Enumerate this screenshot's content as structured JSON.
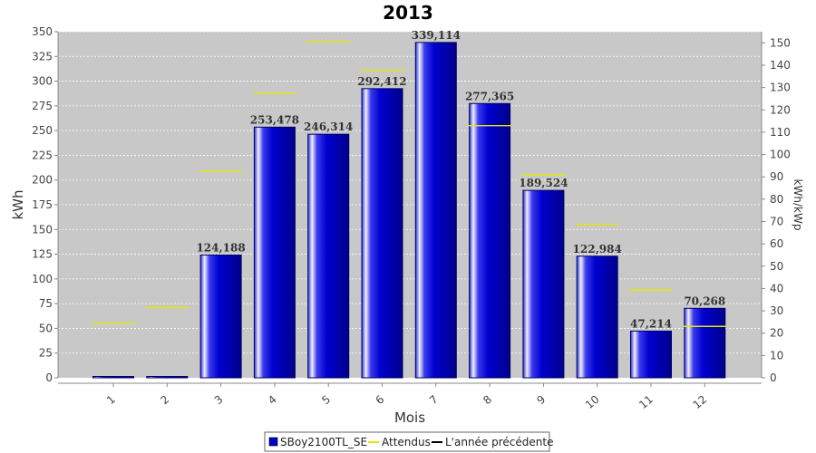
{
  "chart_data": {
    "type": "bar",
    "title": "2013",
    "xlabel": "Mois",
    "ylabel": "kWh",
    "ylabel_right": "kWh/kWp",
    "categories": [
      "1",
      "2",
      "3",
      "4",
      "5",
      "6",
      "7",
      "8",
      "9",
      "10",
      "11",
      "12"
    ],
    "ylim": [
      0,
      350
    ],
    "yticks": [
      0,
      25,
      50,
      75,
      100,
      125,
      150,
      175,
      200,
      225,
      250,
      275,
      300,
      325,
      350
    ],
    "y2lim": [
      0,
      155
    ],
    "y2ticks": [
      0,
      10,
      20,
      30,
      40,
      50,
      60,
      70,
      80,
      90,
      100,
      110,
      120,
      130,
      140,
      150
    ],
    "series": [
      {
        "name": "SBoy2100TL_SE",
        "kind": "bar",
        "values": [
          0,
          0,
          124.188,
          253.478,
          246.314,
          292.412,
          339.114,
          277.365,
          189.524,
          122.984,
          47.214,
          70.268
        ],
        "labels": [
          "",
          "",
          "124,188",
          "253,478",
          "246,314",
          "292,412",
          "339,114",
          "277,365",
          "189,524",
          "122,984",
          "47,214",
          "70,268"
        ]
      },
      {
        "name": "Attendus",
        "kind": "marker",
        "values": [
          55,
          71,
          209,
          288,
          340,
          311,
          null,
          255,
          205,
          155,
          89,
          52
        ]
      },
      {
        "name": "L'année précédente",
        "kind": "marker",
        "values": [
          null,
          null,
          null,
          null,
          null,
          null,
          null,
          null,
          null,
          null,
          null,
          null
        ]
      }
    ],
    "grid": true,
    "legend_position": "bottom",
    "colors": {
      "bar": "#0000cc",
      "bar_dark": "#000066",
      "bar_highlight": "#e8e8ff",
      "expected": "#e6e600",
      "previous_year": "#000000",
      "plot_bg": "#c8c8c8",
      "grid": "#ffffff"
    }
  }
}
